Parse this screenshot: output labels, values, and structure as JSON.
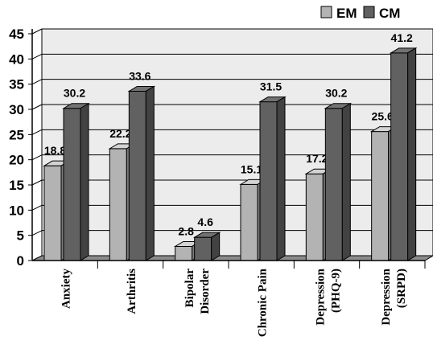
{
  "chart_data": {
    "type": "bar",
    "categories": [
      [
        "Anxiety"
      ],
      [
        "Arthritis"
      ],
      [
        "Bipolar",
        "Disorder"
      ],
      [
        "Chronic Pain"
      ],
      [
        "Depression",
        "(PHQ-9)"
      ],
      [
        "Depression",
        "(SRPD)"
      ]
    ],
    "series": [
      {
        "name": "EM",
        "values": [
          18.8,
          22.2,
          2.8,
          15.1,
          17.2,
          25.6
        ],
        "color": "#b3b3b3"
      },
      {
        "name": "CM",
        "values": [
          30.2,
          33.6,
          4.6,
          31.5,
          30.2,
          41.2
        ],
        "color": "#616161"
      }
    ],
    "yticks": [
      0,
      5,
      10,
      15,
      20,
      25,
      30,
      35,
      40,
      45
    ],
    "ylim": [
      0,
      45
    ],
    "grid": true,
    "legend": "top-right",
    "style": "3d-bar"
  }
}
